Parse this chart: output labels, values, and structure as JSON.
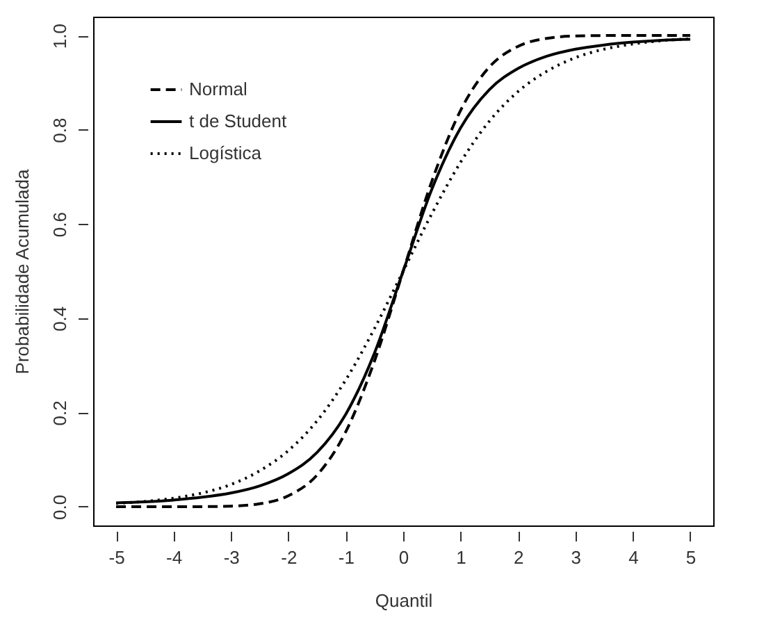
{
  "chart_data": {
    "type": "line",
    "xlabel": "Quantil",
    "ylabel": "Probabilidade Acumulada",
    "x": [
      -5,
      -4.5,
      -4,
      -3.5,
      -3,
      -2.5,
      -2,
      -1.5,
      -1,
      -0.5,
      0,
      0.5,
      1,
      1.5,
      2,
      2.5,
      3,
      3.5,
      4,
      4.5,
      5
    ],
    "series": [
      {
        "name": "Normal",
        "color": "#000000",
        "line_style": "dashed",
        "values": [
          0,
          0,
          0,
          0,
          0.001,
          0.006,
          0.023,
          0.067,
          0.159,
          0.309,
          0.5,
          0.691,
          0.841,
          0.933,
          0.977,
          0.994,
          0.999,
          1,
          1,
          1,
          1
        ]
      },
      {
        "name": "t de Student",
        "color": "#000000",
        "line_style": "solid",
        "values": [
          0.008,
          0.01,
          0.014,
          0.02,
          0.029,
          0.044,
          0.07,
          0.115,
          0.196,
          0.326,
          0.5,
          0.674,
          0.804,
          0.885,
          0.93,
          0.956,
          0.971,
          0.98,
          0.986,
          0.99,
          0.992
        ]
      },
      {
        "name": "Logística",
        "color": "#000000",
        "line_style": "dotted",
        "values": [
          0.007,
          0.011,
          0.018,
          0.029,
          0.047,
          0.076,
          0.119,
          0.182,
          0.269,
          0.378,
          0.5,
          0.622,
          0.731,
          0.818,
          0.881,
          0.924,
          0.953,
          0.971,
          0.982,
          0.989,
          0.993
        ]
      }
    ],
    "xlim": [
      -5.4,
      5.4
    ],
    "ylim": [
      -0.04,
      1.04
    ],
    "xticks": [
      -5,
      -4,
      -3,
      -2,
      -1,
      0,
      1,
      2,
      3,
      4,
      5
    ],
    "yticks": [
      {
        "value": 0,
        "label": "0.0"
      },
      {
        "value": 0.2,
        "label": "0.2"
      },
      {
        "value": 0.4,
        "label": "0.4"
      },
      {
        "value": 0.6,
        "label": "0.6"
      },
      {
        "value": 0.8,
        "label": "0.8"
      },
      {
        "value": 1,
        "label": "1.0"
      }
    ],
    "legend": "top left",
    "grid": false
  }
}
